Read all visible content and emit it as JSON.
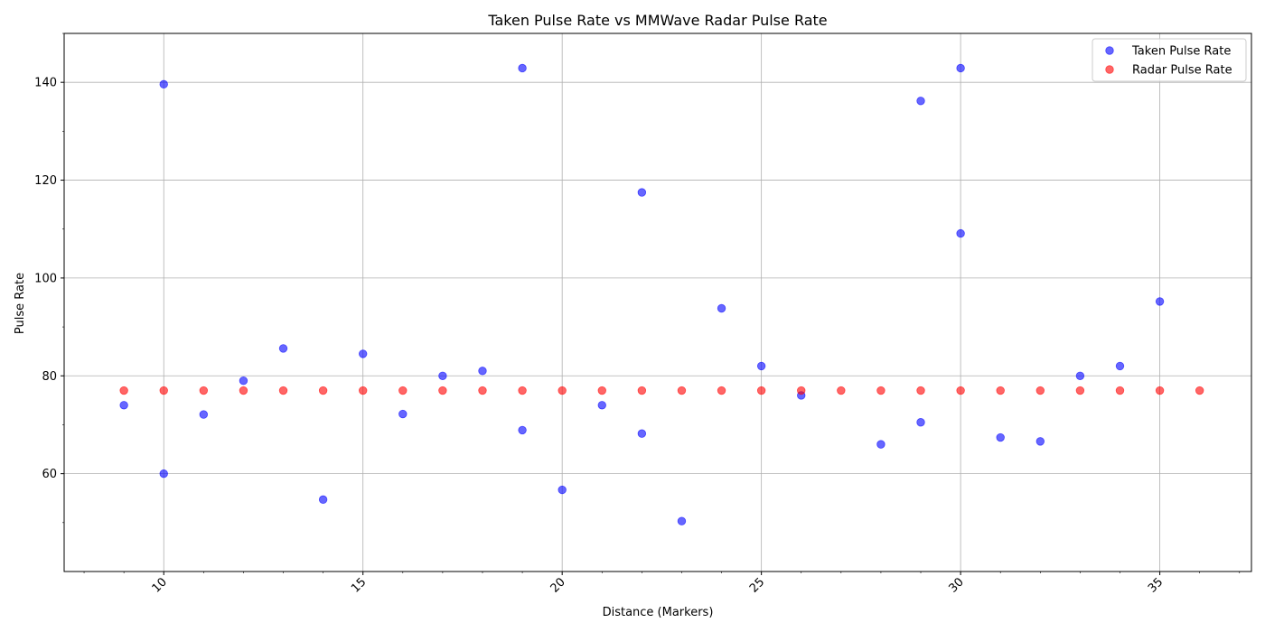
{
  "chart_data": {
    "type": "scatter",
    "title": "Taken Pulse Rate vs MMWave Radar Pulse Rate",
    "xlabel": "Distance (Markers)",
    "ylabel": "Pulse Rate",
    "xlim": [
      7.5,
      37.3
    ],
    "ylim": [
      40,
      150
    ],
    "x_ticks": [
      10,
      15,
      20,
      25,
      30,
      35
    ],
    "x_ticks_minor": [
      8,
      9,
      11,
      12,
      13,
      14,
      16,
      17,
      18,
      19,
      21,
      22,
      23,
      24,
      26,
      27,
      28,
      29,
      31,
      32,
      33,
      34,
      36,
      37
    ],
    "y_ticks": [
      60,
      80,
      100,
      120,
      140
    ],
    "y_ticks_minor": [
      50,
      70,
      90,
      110,
      130,
      150
    ],
    "grid": true,
    "legend_position": "top-right",
    "series": [
      {
        "name": "Taken Pulse Rate",
        "color": "#0000ff",
        "alpha": 0.6,
        "points": [
          [
            9,
            74
          ],
          [
            10,
            139.6
          ],
          [
            10,
            60
          ],
          [
            11,
            72.1
          ],
          [
            12,
            79
          ],
          [
            13,
            85.6
          ],
          [
            14,
            54.7
          ],
          [
            15,
            84.5
          ],
          [
            16,
            72.2
          ],
          [
            17,
            80
          ],
          [
            18,
            81
          ],
          [
            19,
            142.9
          ],
          [
            19,
            68.9
          ],
          [
            20,
            56.7
          ],
          [
            21,
            74
          ],
          [
            22,
            117.5
          ],
          [
            22,
            68.2
          ],
          [
            23,
            50.3
          ],
          [
            24,
            93.8
          ],
          [
            25,
            82
          ],
          [
            26,
            76
          ],
          [
            28,
            66
          ],
          [
            29,
            136.2
          ],
          [
            29,
            70.5
          ],
          [
            30,
            142.9
          ],
          [
            30,
            109.1
          ],
          [
            31,
            67.4
          ],
          [
            32,
            66.6
          ],
          [
            33,
            80
          ],
          [
            34,
            82
          ],
          [
            35,
            95.2
          ]
        ]
      },
      {
        "name": "Radar Pulse Rate",
        "color": "#ff0000",
        "alpha": 0.6,
        "points": [
          [
            9,
            77
          ],
          [
            10,
            77
          ],
          [
            11,
            77
          ],
          [
            12,
            77
          ],
          [
            13,
            77
          ],
          [
            14,
            77
          ],
          [
            15,
            77
          ],
          [
            16,
            77
          ],
          [
            17,
            77
          ],
          [
            18,
            77
          ],
          [
            19,
            77
          ],
          [
            20,
            77
          ],
          [
            21,
            77
          ],
          [
            22,
            77
          ],
          [
            23,
            77
          ],
          [
            24,
            77
          ],
          [
            25,
            77
          ],
          [
            26,
            77
          ],
          [
            27,
            77
          ],
          [
            28,
            77
          ],
          [
            29,
            77
          ],
          [
            30,
            77
          ],
          [
            31,
            77
          ],
          [
            32,
            77
          ],
          [
            33,
            77
          ],
          [
            34,
            77
          ],
          [
            35,
            77
          ],
          [
            36,
            77
          ]
        ]
      }
    ]
  }
}
